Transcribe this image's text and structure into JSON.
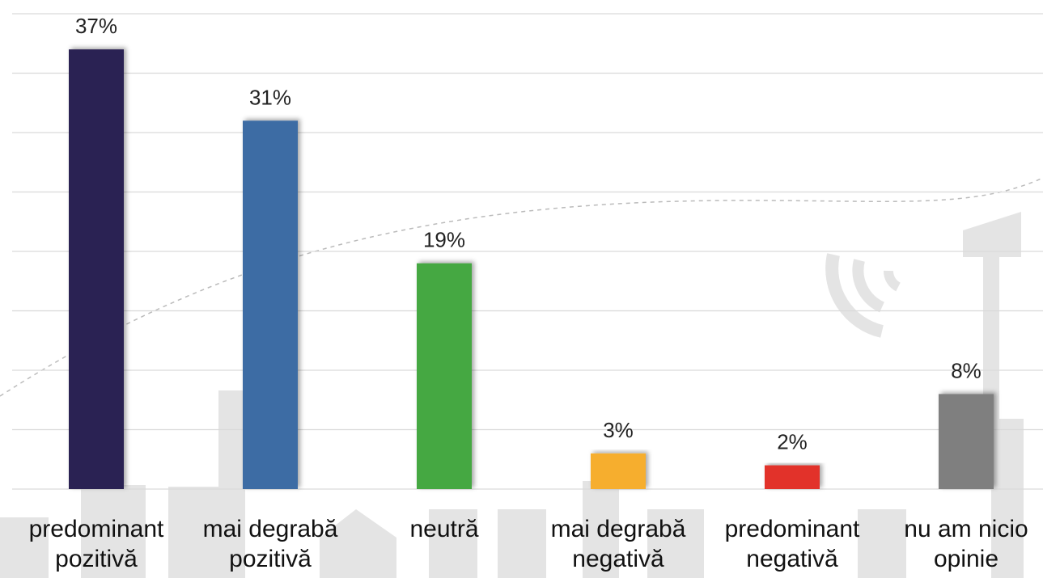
{
  "chart_data": {
    "type": "bar",
    "categories": [
      "predominant\npozitivă",
      "mai degrabă\npozitivă",
      "neutră",
      "mai degrabă\nnegativă",
      "predominant\nnegativă",
      "nu am nicio\nopinie"
    ],
    "values": [
      37,
      31,
      19,
      3,
      2,
      8
    ],
    "value_labels": [
      "37%",
      "31%",
      "19%",
      "3%",
      "2%",
      "8%"
    ],
    "colors": [
      "#2c2452",
      "#3d6ca4",
      "#45a843",
      "#f6ae2d",
      "#e2332c",
      "#7f7f7f"
    ],
    "ylim": [
      0,
      40
    ],
    "yticks": [
      0,
      5,
      10,
      15,
      20,
      25,
      30,
      35,
      40
    ],
    "grid": true
  }
}
